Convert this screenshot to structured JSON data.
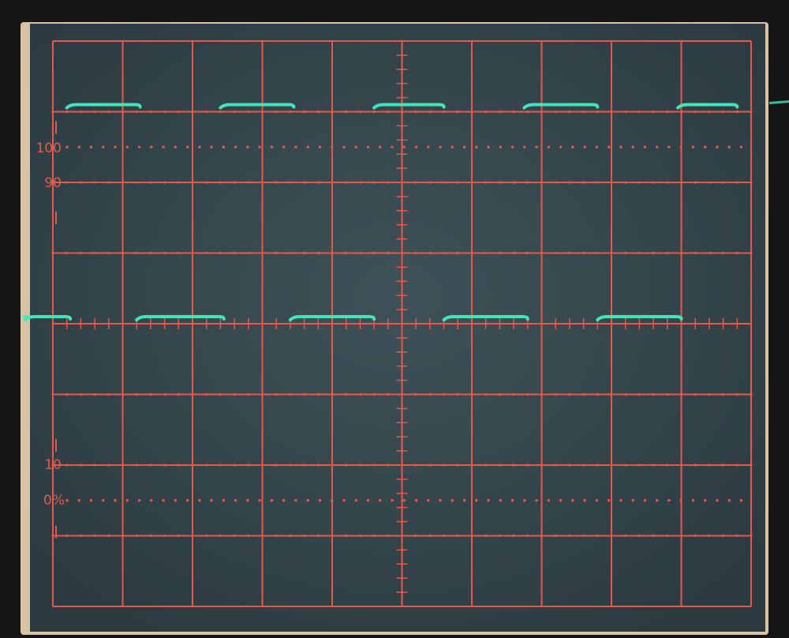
{
  "graticule": {
    "labels": [
      "100",
      "90",
      "10",
      "0%"
    ],
    "grid_color": "#e8584a",
    "divisions_x": 10,
    "divisions_y": 8
  },
  "trace": {
    "color": "#3fe6b8",
    "waveform": "square",
    "high_level_div": 7.1,
    "low_level_div": 4.1,
    "period_div": 2.18
  },
  "chart_data": {
    "type": "line",
    "series": [
      {
        "segments": [
          {
            "level": "high",
            "x": [
              0.2,
              1.25
            ]
          },
          {
            "level": "high",
            "x": [
              2.4,
              3.45
            ]
          },
          {
            "level": "high",
            "x": [
              4.6,
              5.6
            ]
          },
          {
            "level": "high",
            "x": [
              6.75,
              7.8
            ]
          },
          {
            "level": "high",
            "x": [
              8.95,
              9.8
            ]
          },
          {
            "level": "low",
            "x": [
              -0.4,
              0.25
            ]
          },
          {
            "level": "low",
            "x": [
              1.2,
              2.45
            ]
          },
          {
            "level": "low",
            "x": [
              3.4,
              4.6
            ]
          },
          {
            "level": "low",
            "x": [
              5.6,
              6.8
            ]
          },
          {
            "level": "low",
            "x": [
              7.8,
              9.0
            ]
          }
        ]
      }
    ],
    "xlim": [
      0,
      10
    ],
    "ylim": [
      0,
      8
    ],
    "grid": true
  }
}
